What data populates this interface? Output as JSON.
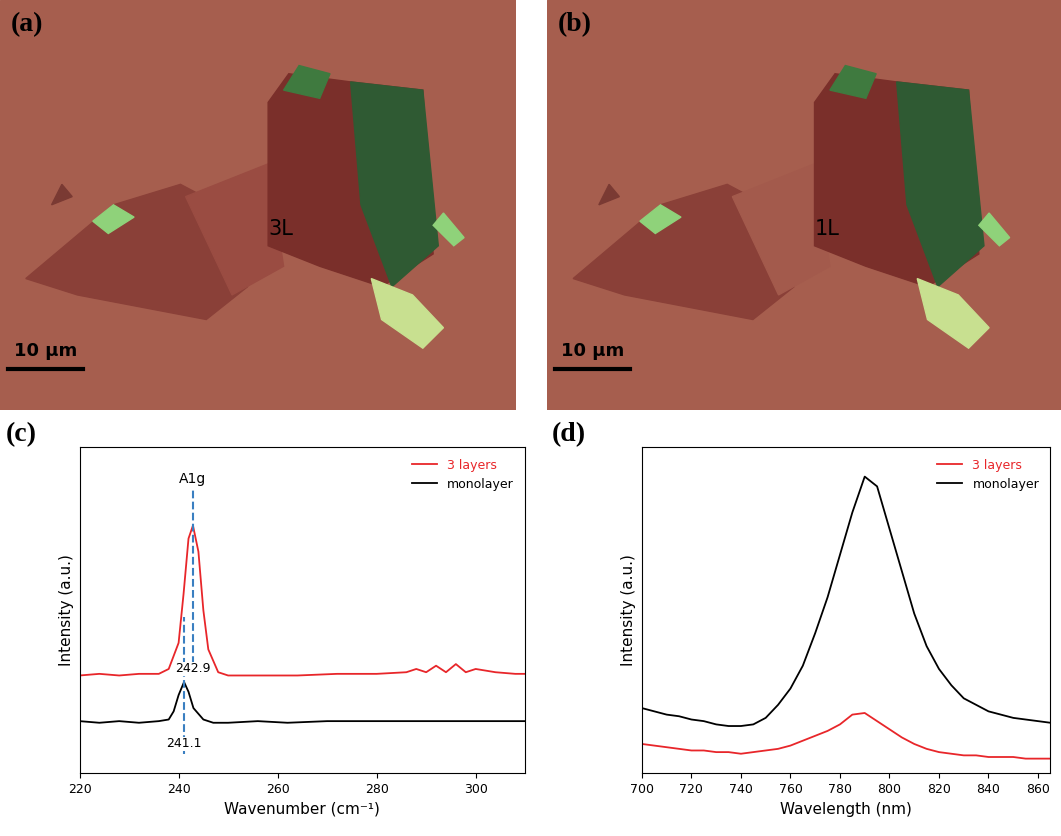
{
  "panels": [
    {
      "panel_label": "(a)",
      "annotation": "3L",
      "scale_bar": "10 μm"
    },
    {
      "panel_label": "(b)",
      "annotation": "1L",
      "scale_bar": "10 μm"
    }
  ],
  "chart_data": [
    {
      "type": "line",
      "panel_label": "(c)",
      "xlabel": "Wavenumber (cm⁻¹)",
      "ylabel": "Intensity (a.u.)",
      "xlim": [
        220,
        310
      ],
      "xticks": [
        220,
        240,
        260,
        280,
        300
      ],
      "ylim": [
        0,
        10
      ],
      "tick_labels": "x",
      "grid": false,
      "legend": "upper right",
      "mode_label": "A1g",
      "peak_labels": [
        {
          "x": 242.9,
          "label": "242.9"
        },
        {
          "x": 241.1,
          "label": "241.1"
        }
      ],
      "series": [
        {
          "name": "3 layers",
          "color": "#e8262a",
          "x": [
            220,
            224,
            228,
            232,
            236,
            238,
            240,
            241,
            242,
            242.9,
            244,
            245,
            246,
            248,
            250,
            256,
            264,
            272,
            280,
            286,
            288,
            290,
            292,
            294,
            296,
            298,
            300,
            304,
            308,
            310
          ],
          "values": [
            3.0,
            3.05,
            3.0,
            3.05,
            3.05,
            3.2,
            4.0,
            5.5,
            7.2,
            7.6,
            6.8,
            5.0,
            3.8,
            3.1,
            3.0,
            3.0,
            3.0,
            3.05,
            3.05,
            3.1,
            3.2,
            3.1,
            3.3,
            3.1,
            3.35,
            3.1,
            3.2,
            3.1,
            3.05,
            3.05
          ]
        },
        {
          "name": "monolayer",
          "color": "#000000",
          "x": [
            220,
            224,
            228,
            232,
            236,
            238,
            239,
            240,
            241.1,
            242,
            243,
            245,
            247,
            250,
            256,
            262,
            270,
            280,
            290,
            300,
            310
          ],
          "values": [
            1.6,
            1.55,
            1.6,
            1.55,
            1.6,
            1.65,
            1.9,
            2.4,
            2.8,
            2.5,
            2.0,
            1.65,
            1.55,
            1.55,
            1.6,
            1.55,
            1.6,
            1.6,
            1.6,
            1.6,
            1.6
          ]
        }
      ]
    },
    {
      "type": "line",
      "panel_label": "(d)",
      "xlabel": "Wavelength (nm)",
      "ylabel": "Intensity (a.u.)",
      "xlim": [
        700,
        865
      ],
      "xticks": [
        700,
        720,
        740,
        760,
        780,
        800,
        820,
        840,
        860
      ],
      "ylim": [
        0,
        10
      ],
      "tick_labels": "x",
      "grid": false,
      "legend": "upper right",
      "series": [
        {
          "name": "3 layers",
          "color": "#e8262a",
          "x": [
            700,
            705,
            710,
            715,
            720,
            725,
            730,
            735,
            740,
            745,
            750,
            755,
            760,
            765,
            770,
            775,
            780,
            785,
            790,
            795,
            800,
            805,
            810,
            815,
            820,
            825,
            830,
            835,
            840,
            845,
            850,
            855,
            860,
            865
          ],
          "values": [
            0.9,
            0.85,
            0.8,
            0.75,
            0.7,
            0.7,
            0.65,
            0.65,
            0.6,
            0.65,
            0.7,
            0.75,
            0.85,
            1.0,
            1.15,
            1.3,
            1.5,
            1.8,
            1.85,
            1.6,
            1.35,
            1.1,
            0.9,
            0.75,
            0.65,
            0.6,
            0.55,
            0.55,
            0.5,
            0.5,
            0.5,
            0.45,
            0.45,
            0.45
          ]
        },
        {
          "name": "monolayer",
          "color": "#000000",
          "x": [
            700,
            705,
            710,
            715,
            720,
            725,
            730,
            735,
            740,
            745,
            750,
            755,
            760,
            765,
            770,
            775,
            780,
            785,
            790,
            795,
            800,
            805,
            810,
            815,
            820,
            825,
            830,
            835,
            840,
            845,
            850,
            855,
            860,
            865
          ],
          "values": [
            2.0,
            1.9,
            1.8,
            1.75,
            1.65,
            1.6,
            1.5,
            1.45,
            1.45,
            1.5,
            1.7,
            2.1,
            2.6,
            3.3,
            4.3,
            5.4,
            6.7,
            8.0,
            9.1,
            8.8,
            7.5,
            6.2,
            4.9,
            3.9,
            3.2,
            2.7,
            2.3,
            2.1,
            1.9,
            1.8,
            1.7,
            1.65,
            1.6,
            1.55
          ]
        }
      ]
    }
  ]
}
